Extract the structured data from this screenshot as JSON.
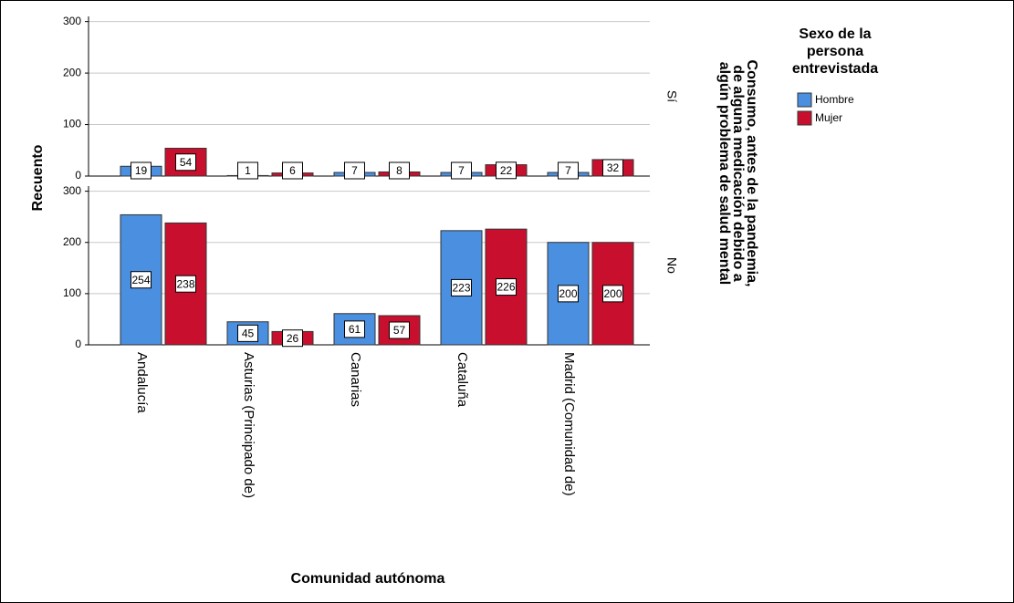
{
  "chart_data": [
    {
      "type": "bar",
      "panel": "Sí",
      "ylim": [
        0,
        310
      ],
      "yticks": [
        0,
        100,
        200,
        300
      ],
      "grid": true,
      "series": [
        {
          "name": "Hombre",
          "color": "#4a8fe0",
          "values": [
            19,
            1,
            7,
            7,
            7
          ]
        },
        {
          "name": "Mujer",
          "color": "#c8102e",
          "values": [
            54,
            6,
            8,
            22,
            32
          ]
        }
      ]
    },
    {
      "type": "bar",
      "panel": "No",
      "ylim": [
        0,
        310
      ],
      "yticks": [
        0,
        100,
        200,
        300
      ],
      "grid": true,
      "categories": [
        "Andalucía",
        "Asturias (Principado de)",
        "Canarias",
        "Cataluña",
        "Madrid (Comunidad de)"
      ],
      "series": [
        {
          "color": "#4a8fe0",
          "values": [
            254,
            45,
            61,
            223,
            200
          ]
        },
        {
          "color": "#c8102e",
          "values": [
            238,
            26,
            57,
            226,
            200
          ]
        }
      ]
    }
  ],
  "y_label": "Recuento",
  "x_label": "Comunidad autónoma",
  "facet_title": [
    "Consumo, antes de la pandemia,",
    "de alguna medicación debido a",
    "algún problema de salud mental"
  ],
  "legend_title": [
    "Sexo de la",
    "persona",
    "entrevistada"
  ]
}
